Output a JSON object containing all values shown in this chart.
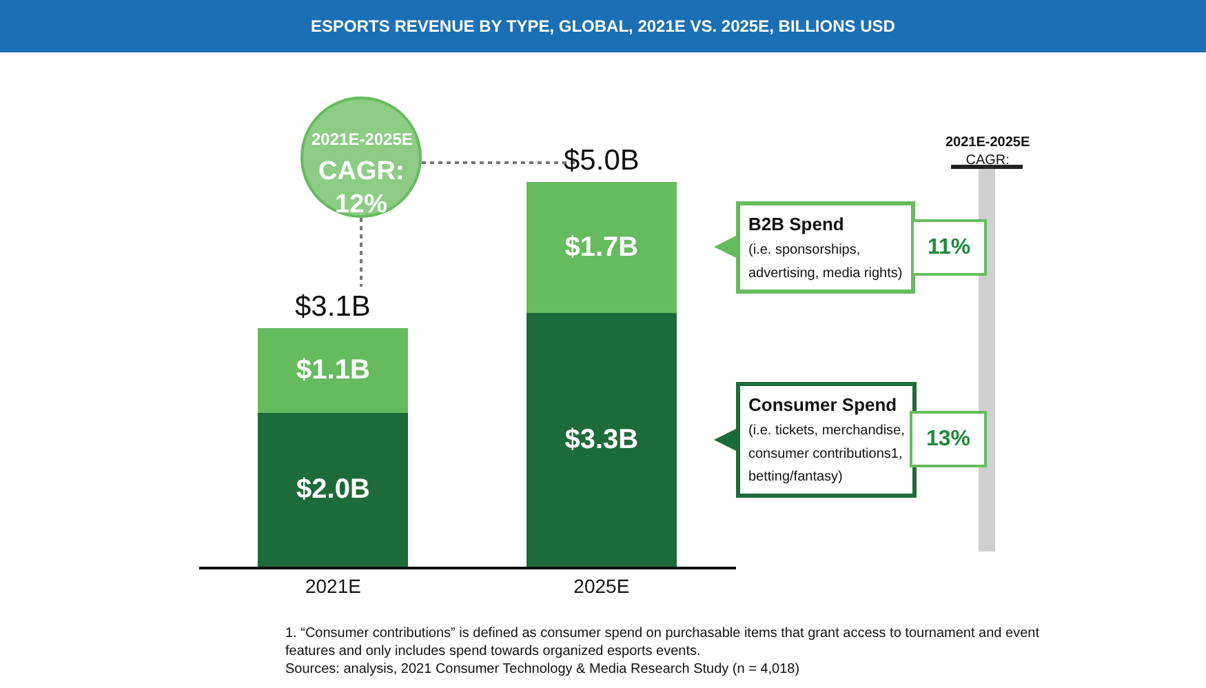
{
  "chart_data": {
    "type": "bar",
    "title": "ESPORTS REVENUE BY TYPE, GLOBAL, 2021E VS. 2025E, BILLIONS USD",
    "categories": [
      "2021E",
      "2025E"
    ],
    "stacked": true,
    "series": [
      {
        "name": "Consumer Spend",
        "color": "#1e6b3a",
        "values": [
          2.0,
          3.3
        ],
        "value_labels": [
          "$2.0B",
          "$3.3B"
        ]
      },
      {
        "name": "B2B Spend",
        "color": "#66bb5f",
        "values": [
          1.1,
          1.7
        ],
        "value_labels": [
          "$1.1B",
          "$1.7B"
        ]
      }
    ],
    "totals": [
      "$3.1B",
      "$5.0B"
    ],
    "annotations": [
      "2021E-2025E\nCAGR:\n12%",
      "(i.e. tickets, merchandise,\nconsumer contributions1,\nbetting/fantasy)",
      "(i.e. sponsorships,\nadvertising, media rights)",
      "2021E-2025E\nCAGR:",
      "13%",
      "11%",
      "1. “Consumer contributions” is defined as consumer spend on purchasable items that grant access to tournament and event\nfeatures and only includes spend towards organized esports events.\nSources: analysis, 2021 Consumer Technology & Media Research Study (n = 4,018)"
    ]
  }
}
